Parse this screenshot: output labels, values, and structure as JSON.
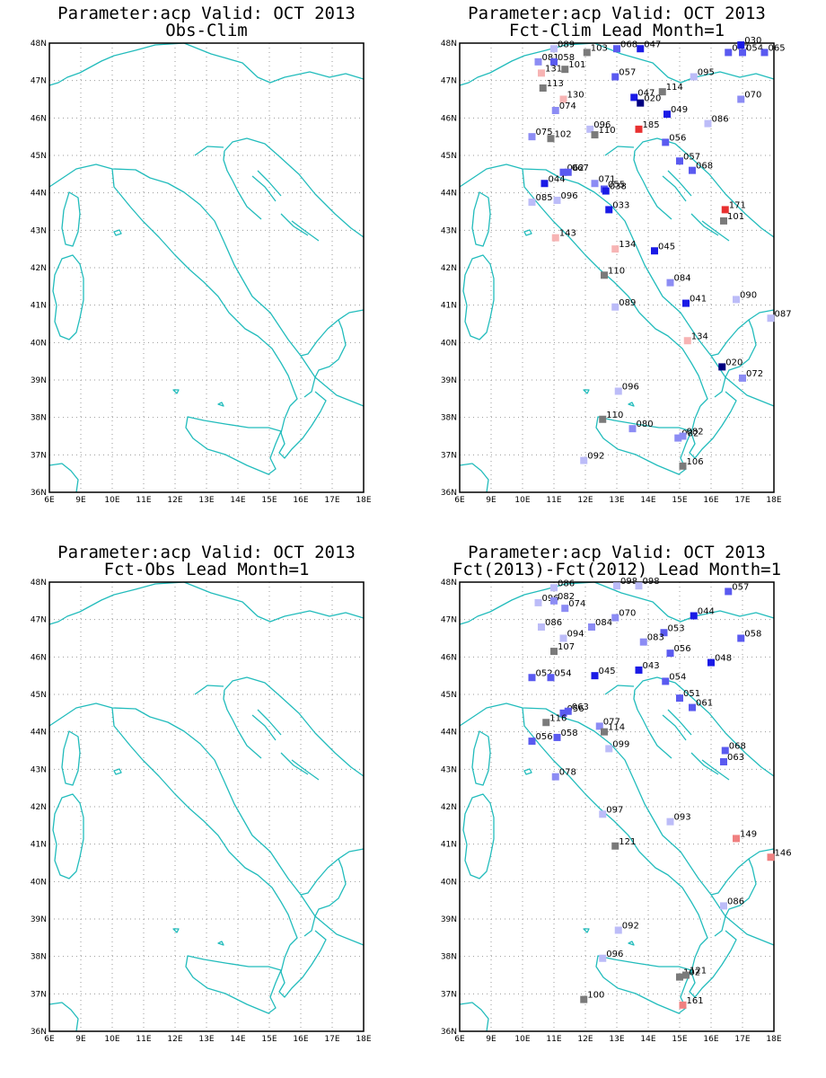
{
  "colors": {
    "coast": "#22bcbc",
    "grid": "#9a9a9a",
    "neutral": "#7a7a7a",
    "scale": [
      "#000080",
      "#1a1ae6",
      "#5a5af0",
      "#8c8cf4",
      "#bcbcf8",
      "#7a7a7a",
      "#f7b4b4",
      "#f08080",
      "#e83030"
    ]
  },
  "axes": {
    "lon": [
      "6E",
      "9E",
      "10E",
      "11E",
      "12E",
      "13E",
      "14E",
      "15E",
      "16E",
      "17E",
      "18E"
    ],
    "lat": [
      "48N",
      "47N",
      "46N",
      "45N",
      "44N",
      "43N",
      "42N",
      "41N",
      "40N",
      "39N",
      "38N",
      "37N",
      "36N"
    ]
  },
  "panels": [
    {
      "title1": "Parameter:acp Valid: OCT 2013",
      "title2": "Obs-Clim",
      "stations": []
    },
    {
      "title1": "Parameter:acp Valid: OCT 2013",
      "title2": "Fct-Clim Lead Month=1",
      "stations": [
        {
          "lon": 11.0,
          "lat": 47.85,
          "label": "089"
        },
        {
          "lon": 12.05,
          "lat": 47.75,
          "label": "103"
        },
        {
          "lon": 13.0,
          "lat": 47.85,
          "label": "068"
        },
        {
          "lon": 13.75,
          "lat": 47.85,
          "label": "047"
        },
        {
          "lon": 16.55,
          "lat": 47.75,
          "label": "067"
        },
        {
          "lon": 16.95,
          "lat": 47.95,
          "label": "030"
        },
        {
          "lon": 17.0,
          "lat": 47.75,
          "label": "054"
        },
        {
          "lon": 17.7,
          "lat": 47.75,
          "label": "065"
        },
        {
          "lon": 10.5,
          "lat": 47.5,
          "label": "081"
        },
        {
          "lon": 11.0,
          "lat": 47.5,
          "label": "058"
        },
        {
          "lon": 11.35,
          "lat": 47.3,
          "label": "101"
        },
        {
          "lon": 10.6,
          "lat": 47.2,
          "label": "131"
        },
        {
          "lon": 12.95,
          "lat": 47.1,
          "label": "057"
        },
        {
          "lon": 15.45,
          "lat": 47.1,
          "label": "095"
        },
        {
          "lon": 10.65,
          "lat": 46.8,
          "label": "113"
        },
        {
          "lon": 14.45,
          "lat": 46.7,
          "label": "114"
        },
        {
          "lon": 11.3,
          "lat": 46.5,
          "label": "130"
        },
        {
          "lon": 13.55,
          "lat": 46.55,
          "label": "047"
        },
        {
          "lon": 13.75,
          "lat": 46.4,
          "label": "020"
        },
        {
          "lon": 16.95,
          "lat": 46.5,
          "label": "070"
        },
        {
          "lon": 11.05,
          "lat": 46.2,
          "label": "074"
        },
        {
          "lon": 14.6,
          "lat": 46.1,
          "label": "049"
        },
        {
          "lon": 15.9,
          "lat": 45.85,
          "label": "086"
        },
        {
          "lon": 12.15,
          "lat": 45.7,
          "label": "096"
        },
        {
          "lon": 13.7,
          "lat": 45.7,
          "label": "185"
        },
        {
          "lon": 12.3,
          "lat": 45.55,
          "label": "110"
        },
        {
          "lon": 10.3,
          "lat": 45.5,
          "label": "075"
        },
        {
          "lon": 10.9,
          "lat": 45.45,
          "label": "102"
        },
        {
          "lon": 14.55,
          "lat": 45.35,
          "label": "056"
        },
        {
          "lon": 15.0,
          "lat": 44.85,
          "label": "057"
        },
        {
          "lon": 15.4,
          "lat": 44.6,
          "label": "068"
        },
        {
          "lon": 11.3,
          "lat": 44.55,
          "label": "062"
        },
        {
          "lon": 11.45,
          "lat": 44.55,
          "label": "067"
        },
        {
          "lon": 12.3,
          "lat": 44.25,
          "label": "071"
        },
        {
          "lon": 10.7,
          "lat": 44.25,
          "label": "044"
        },
        {
          "lon": 12.6,
          "lat": 44.1,
          "label": "055"
        },
        {
          "lon": 12.65,
          "lat": 44.05,
          "label": "038"
        },
        {
          "lon": 11.1,
          "lat": 43.8,
          "label": "096"
        },
        {
          "lon": 10.3,
          "lat": 43.75,
          "label": "085"
        },
        {
          "lon": 12.75,
          "lat": 43.55,
          "label": "033"
        },
        {
          "lon": 16.45,
          "lat": 43.55,
          "label": "171"
        },
        {
          "lon": 16.4,
          "lat": 43.25,
          "label": "101"
        },
        {
          "lon": 11.05,
          "lat": 42.8,
          "label": "143"
        },
        {
          "lon": 12.95,
          "lat": 42.5,
          "label": "134"
        },
        {
          "lon": 14.2,
          "lat": 42.45,
          "label": "045"
        },
        {
          "lon": 12.6,
          "lat": 41.8,
          "label": "110"
        },
        {
          "lon": 14.7,
          "lat": 41.6,
          "label": "084"
        },
        {
          "lon": 15.2,
          "lat": 41.05,
          "label": "041"
        },
        {
          "lon": 16.8,
          "lat": 41.15,
          "label": "090"
        },
        {
          "lon": 12.95,
          "lat": 40.95,
          "label": "089"
        },
        {
          "lon": 17.9,
          "lat": 40.65,
          "label": "087"
        },
        {
          "lon": 15.25,
          "lat": 40.05,
          "label": "134"
        },
        {
          "lon": 16.35,
          "lat": 39.35,
          "label": "020"
        },
        {
          "lon": 17.0,
          "lat": 39.05,
          "label": "072"
        },
        {
          "lon": 13.05,
          "lat": 38.7,
          "label": "096"
        },
        {
          "lon": 12.55,
          "lat": 37.95,
          "label": "110"
        },
        {
          "lon": 13.5,
          "lat": 37.7,
          "label": "080"
        },
        {
          "lon": 14.95,
          "lat": 37.45,
          "label": "082"
        },
        {
          "lon": 15.1,
          "lat": 37.5,
          "label": "082"
        },
        {
          "lon": 11.95,
          "lat": 36.85,
          "label": "092"
        },
        {
          "lon": 15.1,
          "lat": 36.7,
          "label": "106"
        }
      ]
    },
    {
      "title1": "Parameter:acp Valid: OCT 2013",
      "title2": "Fct-Obs Lead Month=1",
      "stations": []
    },
    {
      "title1": "Parameter:acp Valid: OCT 2013",
      "title2": "Fct(2013)-Fct(2012) Lead Month=1",
      "stations": [
        {
          "lon": 11.0,
          "lat": 47.85,
          "label": "086"
        },
        {
          "lon": 13.0,
          "lat": 47.9,
          "label": "098"
        },
        {
          "lon": 13.7,
          "lat": 47.9,
          "label": "098"
        },
        {
          "lon": 16.55,
          "lat": 47.75,
          "label": "057"
        },
        {
          "lon": 10.5,
          "lat": 47.45,
          "label": "096"
        },
        {
          "lon": 11.0,
          "lat": 47.5,
          "label": "082"
        },
        {
          "lon": 11.35,
          "lat": 47.3,
          "label": "074"
        },
        {
          "lon": 12.95,
          "lat": 47.05,
          "label": "070"
        },
        {
          "lon": 15.45,
          "lat": 47.1,
          "label": "044"
        },
        {
          "lon": 10.6,
          "lat": 46.8,
          "label": "086"
        },
        {
          "lon": 12.2,
          "lat": 46.8,
          "label": "084"
        },
        {
          "lon": 14.5,
          "lat": 46.65,
          "label": "053"
        },
        {
          "lon": 11.3,
          "lat": 46.5,
          "label": "094"
        },
        {
          "lon": 13.85,
          "lat": 46.4,
          "label": "083"
        },
        {
          "lon": 16.95,
          "lat": 46.5,
          "label": "058"
        },
        {
          "lon": 11.0,
          "lat": 46.15,
          "label": "107"
        },
        {
          "lon": 14.7,
          "lat": 46.1,
          "label": "056"
        },
        {
          "lon": 16.0,
          "lat": 45.85,
          "label": "048"
        },
        {
          "lon": 13.7,
          "lat": 45.65,
          "label": "043"
        },
        {
          "lon": 12.3,
          "lat": 45.5,
          "label": "045"
        },
        {
          "lon": 10.3,
          "lat": 45.45,
          "label": "052"
        },
        {
          "lon": 10.9,
          "lat": 45.45,
          "label": "054"
        },
        {
          "lon": 14.55,
          "lat": 45.35,
          "label": "054"
        },
        {
          "lon": 15.0,
          "lat": 44.9,
          "label": "051"
        },
        {
          "lon": 15.4,
          "lat": 44.65,
          "label": "061"
        },
        {
          "lon": 11.3,
          "lat": 44.5,
          "label": "056"
        },
        {
          "lon": 11.45,
          "lat": 44.55,
          "label": "063"
        },
        {
          "lon": 10.75,
          "lat": 44.25,
          "label": "116"
        },
        {
          "lon": 12.45,
          "lat": 44.15,
          "label": "077"
        },
        {
          "lon": 12.6,
          "lat": 44.0,
          "label": "114"
        },
        {
          "lon": 11.1,
          "lat": 43.85,
          "label": "058"
        },
        {
          "lon": 10.3,
          "lat": 43.75,
          "label": "056"
        },
        {
          "lon": 12.75,
          "lat": 43.55,
          "label": "099"
        },
        {
          "lon": 16.45,
          "lat": 43.5,
          "label": "068"
        },
        {
          "lon": 16.4,
          "lat": 43.2,
          "label": "063"
        },
        {
          "lon": 11.05,
          "lat": 42.8,
          "label": "078"
        },
        {
          "lon": 12.55,
          "lat": 41.8,
          "label": "097"
        },
        {
          "lon": 14.7,
          "lat": 41.6,
          "label": "093"
        },
        {
          "lon": 16.8,
          "lat": 41.15,
          "label": "149"
        },
        {
          "lon": 12.95,
          "lat": 40.95,
          "label": "121"
        },
        {
          "lon": 17.9,
          "lat": 40.65,
          "label": "146"
        },
        {
          "lon": 16.4,
          "lat": 39.35,
          "label": "086"
        },
        {
          "lon": 13.05,
          "lat": 38.7,
          "label": "092"
        },
        {
          "lon": 12.55,
          "lat": 37.95,
          "label": "096"
        },
        {
          "lon": 15.0,
          "lat": 37.45,
          "label": "102"
        },
        {
          "lon": 15.2,
          "lat": 37.5,
          "label": "121"
        },
        {
          "lon": 11.95,
          "lat": 36.85,
          "label": "100"
        },
        {
          "lon": 15.1,
          "lat": 36.7,
          "label": "161"
        }
      ]
    }
  ]
}
